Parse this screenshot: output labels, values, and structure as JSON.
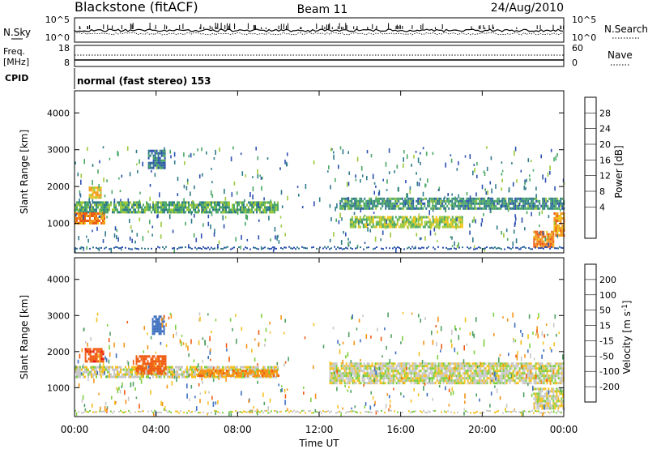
{
  "header": {
    "station": "Blackstone (fitACF)",
    "beam": "Beam 11",
    "date": "24/Aug/2010"
  },
  "top_panels": {
    "nsky_label": "N.Sky",
    "nsearch_label": "N.Search",
    "nsky_ticks": [
      "10^5",
      "10^0"
    ],
    "nsky_ticks_right": [
      "10^5",
      "10^0"
    ],
    "freq_label": "Freq.",
    "freq_unit": "[MHz]",
    "freq_ticks": [
      "18",
      "8"
    ],
    "nave_label": "Nave",
    "nave_ticks": [
      "60",
      "0"
    ],
    "cpid_label": "CPID",
    "cpid_text": "normal (fast stereo) 153"
  },
  "chart_data": [
    {
      "type": "heatmap",
      "panel": "power",
      "xlabel": "",
      "ylabel": "Slant Range [km]",
      "xlim": [
        0,
        24
      ],
      "ylim": [
        200,
        4600
      ],
      "yticks": [
        1000,
        2000,
        3000,
        4000
      ],
      "colorbar": {
        "label": "Power [dB]",
        "ticks": [
          4,
          8,
          12,
          16,
          20,
          24,
          28
        ],
        "colors": [
          "#1f28c8",
          "#2c4fb0",
          "#2f7a8a",
          "#4aa864",
          "#9cc83c",
          "#f0c419",
          "#f39a1c",
          "#ec5c14",
          "#d61a0f"
        ]
      },
      "features": [
        {
          "t_start": 0.0,
          "t_end": 10.0,
          "range_low": 1300,
          "range_high": 1600,
          "power_db": 14
        },
        {
          "t_start": 0.0,
          "t_end": 1.5,
          "range_low": 1000,
          "range_high": 1300,
          "power_db": 28
        },
        {
          "t_start": 0.7,
          "t_end": 1.3,
          "range_low": 1700,
          "range_high": 2000,
          "power_db": 22
        },
        {
          "t_start": 3.6,
          "t_end": 4.4,
          "range_low": 2500,
          "range_high": 3000,
          "power_db": 10
        },
        {
          "t_start": 13.0,
          "t_end": 24.0,
          "range_low": 1400,
          "range_high": 1700,
          "power_db": 12
        },
        {
          "t_start": 13.5,
          "t_end": 19.0,
          "range_low": 900,
          "range_high": 1200,
          "power_db": 18
        },
        {
          "t_start": 22.5,
          "t_end": 23.5,
          "range_low": 400,
          "range_high": 800,
          "power_db": 28
        },
        {
          "t_start": 23.5,
          "t_end": 24.0,
          "range_low": 700,
          "range_high": 1300,
          "power_db": 26
        }
      ]
    },
    {
      "type": "heatmap",
      "panel": "velocity",
      "xlabel": "Time UT",
      "ylabel": "Slant Range [km]",
      "xlim": [
        0,
        24
      ],
      "ylim": [
        200,
        4600
      ],
      "xticks": [
        "00:00",
        "04:00",
        "08:00",
        "12:00",
        "16:00",
        "20:00",
        "00:00"
      ],
      "yticks": [
        1000,
        2000,
        3000,
        4000
      ],
      "colorbar": {
        "label": "Velocity [m s^-1]",
        "ticks": [
          200,
          100,
          50,
          15,
          -15,
          -50,
          -100,
          -200
        ],
        "colors": [
          "#1a2fbf",
          "#3c6ebf",
          "#4fa060",
          "#7fd040",
          "#c8c8c8",
          "#f5c020",
          "#f59418",
          "#f05c12",
          "#e0140a"
        ]
      },
      "features": [
        {
          "t_start": 0.0,
          "t_end": 10.0,
          "range_low": 1300,
          "range_high": 1600,
          "velocity": -5
        },
        {
          "t_start": 0.5,
          "t_end": 1.4,
          "range_low": 1700,
          "range_high": 2100,
          "velocity": -180
        },
        {
          "t_start": 3.0,
          "t_end": 4.5,
          "range_low": 1400,
          "range_high": 1900,
          "velocity": -150
        },
        {
          "t_start": 3.8,
          "t_end": 4.4,
          "range_low": 2500,
          "range_high": 3000,
          "velocity": 150
        },
        {
          "t_start": 6.0,
          "t_end": 10.0,
          "range_low": 1300,
          "range_high": 1500,
          "velocity": -80
        },
        {
          "t_start": 12.5,
          "t_end": 24.0,
          "range_low": 1100,
          "range_high": 1700,
          "velocity": 0
        },
        {
          "t_start": 22.5,
          "t_end": 24.0,
          "range_low": 400,
          "range_high": 1000,
          "velocity": 0
        }
      ]
    }
  ]
}
